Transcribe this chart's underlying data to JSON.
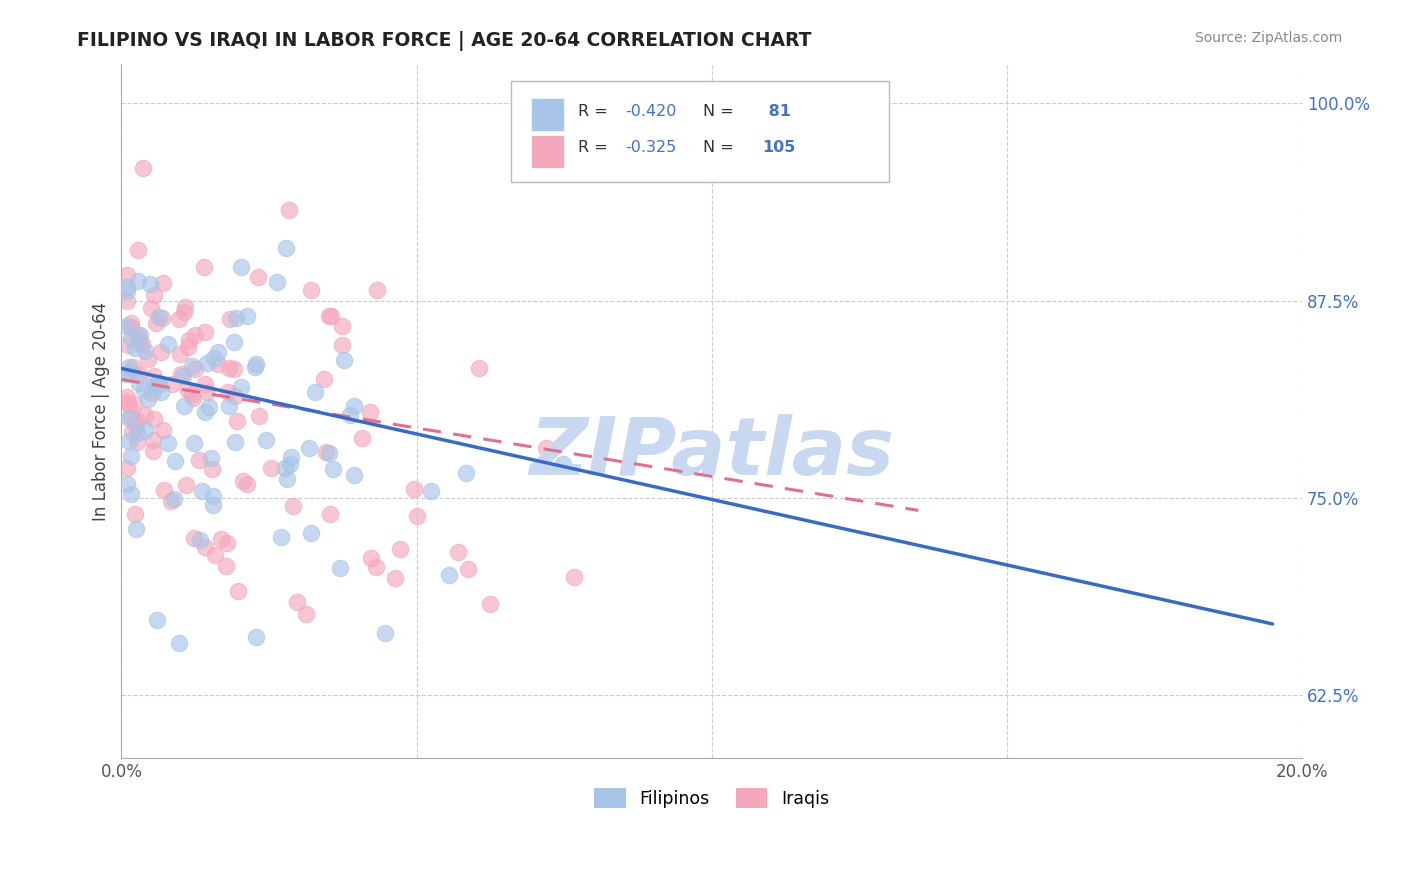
{
  "title": "FILIPINO VS IRAQI IN LABOR FORCE | AGE 20-64 CORRELATION CHART",
  "source": "Source: ZipAtlas.com",
  "ylabel": "In Labor Force | Age 20-64",
  "xlim": [
    0.0,
    0.2
  ],
  "ylim": [
    0.585,
    1.025
  ],
  "yticks": [
    0.625,
    0.75,
    0.875,
    1.0
  ],
  "ytick_labels": [
    "62.5%",
    "75.0%",
    "87.5%",
    "100.0%"
  ],
  "xticks": [
    0.0,
    0.05,
    0.1,
    0.15,
    0.2
  ],
  "xtick_labels": [
    "0.0%",
    "",
    "",
    "",
    "20.0%"
  ],
  "filipino_color": "#a8c4e8",
  "iraqi_color": "#f4a8bc",
  "filipino_line_color": "#3a6bc4",
  "iraqi_line_color": "#e07090",
  "R_filipino": -0.42,
  "N_filipino": 81,
  "R_iraqi": -0.325,
  "N_iraqi": 105,
  "watermark": "ZIPatlas",
  "watermark_color": "#c8d8f0",
  "legend_label_filipino": "Filipinos",
  "legend_label_iraqi": "Iraqis",
  "fil_line_x0": 0.0,
  "fil_line_y0": 0.832,
  "fil_line_x1": 0.195,
  "fil_line_y1": 0.67,
  "irq_line_x0": 0.0,
  "irq_line_y0": 0.825,
  "irq_line_x1": 0.135,
  "irq_line_y1": 0.742
}
